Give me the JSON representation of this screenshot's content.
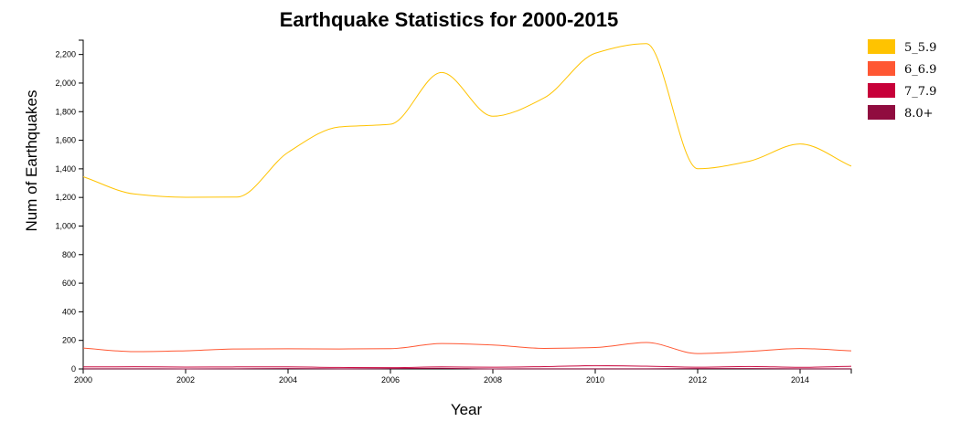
{
  "chart_data": {
    "type": "line",
    "title": "Earthquake Statistics for 2000-2015",
    "xlabel": "Year",
    "ylabel": "Num of Earthquakes",
    "x": [
      2000,
      2001,
      2002,
      2003,
      2004,
      2005,
      2006,
      2007,
      2008,
      2009,
      2010,
      2011,
      2012,
      2013,
      2014,
      2015
    ],
    "xlim": [
      2000,
      2015
    ],
    "ylim": [
      0,
      2300
    ],
    "x_ticks": [
      2000,
      2002,
      2004,
      2006,
      2008,
      2010,
      2012,
      2014
    ],
    "x_tick_labels": [
      "2000",
      "2002",
      "2004",
      "2006",
      "2008",
      "2010",
      "2012",
      "2014"
    ],
    "y_ticks": [
      0,
      200,
      400,
      600,
      800,
      1000,
      1200,
      1400,
      1600,
      1800,
      2000,
      2200
    ],
    "y_tick_labels": [
      "0",
      "200",
      "400",
      "600",
      "800",
      "1,000",
      "1,200",
      "1,400",
      "1,600",
      "1,800",
      "2,000",
      "2,200"
    ],
    "grid": false,
    "legend_position": "top-right",
    "series": [
      {
        "name": "5_5.9",
        "color": "#FFC300",
        "values": [
          1345,
          1224,
          1201,
          1203,
          1515,
          1693,
          1712,
          2074,
          1768,
          1896,
          2209,
          2276,
          1401,
          1453,
          1574,
          1419
        ]
      },
      {
        "name": "6_6.9",
        "color": "#FF5733",
        "values": [
          146,
          121,
          127,
          140,
          141,
          140,
          142,
          178,
          168,
          144,
          150,
          185,
          108,
          123,
          143,
          127
        ]
      },
      {
        "name": "7_7.9",
        "color": "#C70039",
        "values": [
          14,
          15,
          13,
          14,
          14,
          10,
          9,
          14,
          12,
          16,
          23,
          19,
          12,
          17,
          11,
          18
        ]
      },
      {
        "name": "8.0+",
        "color": "#900C3F",
        "values": [
          1,
          1,
          0,
          1,
          2,
          1,
          2,
          4,
          0,
          1,
          1,
          1,
          2,
          2,
          1,
          1
        ]
      }
    ]
  }
}
